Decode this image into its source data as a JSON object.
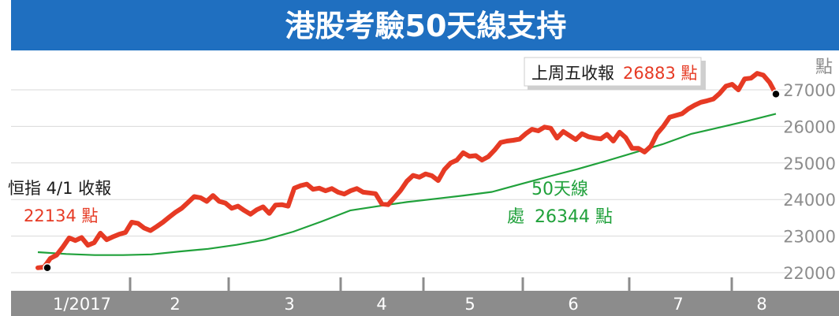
{
  "colors": {
    "title_bar": "#1f6fc0",
    "title_text": "#ffffff",
    "hsi_line": "#e63a24",
    "ma_line": "#20a13b",
    "grid": "#d9d9d9",
    "axis_bar": "#8c8c8c",
    "axis_text": "#ffffff",
    "y_text": "#8c8c8c",
    "callout_dark": "#1a1a1a"
  },
  "chart_data": {
    "type": "line",
    "title": "港股考驗50天線支持",
    "y_unit": "點",
    "ylim": [
      22000,
      27000
    ],
    "y_ticks": [
      "22000",
      "23000",
      "24000",
      "25000",
      "26000",
      "27000"
    ],
    "x_ticks": [
      "1/2017",
      "2",
      "3",
      "4",
      "5",
      "6",
      "7",
      "8"
    ],
    "grid": true,
    "series": [
      {
        "name": "",
        "values": [
          22134,
          22150,
          22390,
          22480,
          22700,
          22950,
          22880,
          22960,
          22750,
          22820,
          23080,
          22900,
          22980,
          23050,
          23100,
          23380,
          23350,
          23220,
          23150,
          23260,
          23380,
          23520,
          23650,
          23760,
          23920,
          24080,
          24050,
          23950,
          24110,
          23950,
          23900,
          23760,
          23820,
          23700,
          23600,
          23720,
          23800,
          23620,
          23850,
          23860,
          23820,
          24310,
          24380,
          24420,
          24280,
          24310,
          24240,
          24300,
          24200,
          24150,
          24240,
          24300,
          24200,
          24180,
          24160,
          23880,
          23860,
          24050,
          24250,
          24500,
          24660,
          24610,
          24700,
          24650,
          24520,
          24820,
          25000,
          25080,
          25280,
          25180,
          25200,
          25080,
          25170,
          25350,
          25560,
          25600,
          25620,
          25650,
          25800,
          25920,
          25880,
          25980,
          25950,
          25680,
          25860,
          25750,
          25640,
          25800,
          25720,
          25680,
          25660,
          25780,
          25600,
          25840,
          25690,
          25400,
          25400,
          25300,
          25460,
          25800,
          26000,
          26250,
          26300,
          26350,
          26480,
          26580,
          26660,
          26700,
          26750,
          26900,
          27100,
          27150,
          27000,
          27300,
          27320,
          27450,
          27400,
          27200,
          26883
        ]
      },
      {
        "name": "",
        "values": [
          22560,
          22510,
          22480,
          22480,
          22500,
          22580,
          22650,
          22760,
          22900,
          23120,
          23400,
          23700,
          23820,
          23930,
          24020,
          24110,
          24210,
          24420,
          24630,
          24830,
          25050,
          25280,
          25510,
          25790,
          25970,
          26150,
          26344
        ]
      }
    ],
    "annotations": {
      "start_label": "恒指 4/1 收報",
      "start_value": "22134 點",
      "end_label": "上周五收報",
      "end_value": "26883 點",
      "ma_label": "50天線",
      "ma_value_prefix": "處",
      "ma_value": "26344 點"
    }
  }
}
